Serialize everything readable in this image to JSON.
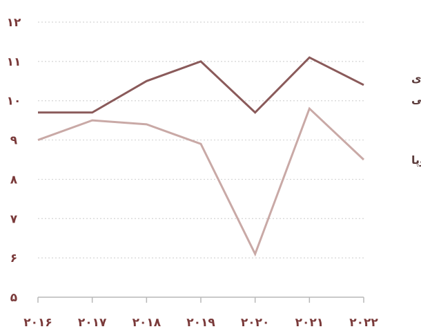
{
  "chart_data": {
    "type": "line",
    "x": [
      "۲۰۱۶",
      "۲۰۱۷",
      "۲۰۱۸",
      "۲۰۱۹",
      "۲۰۲۰",
      "۲۰۲۱",
      "۲۰۲۲"
    ],
    "y_ticks": [
      5,
      6,
      7,
      8,
      9,
      10,
      11,
      12
    ],
    "y_tick_labels": [
      "۵",
      "۶",
      "۷",
      "۸",
      "۹",
      "۱۰",
      "۱۱",
      "۱۲"
    ],
    "ylim": [
      5,
      12
    ],
    "grid": "horizontal dotted",
    "legend": "inline labels at right end of lines",
    "series": [
      {
        "name": "امریکای شمالی",
        "name_lines": [
          "امریکای",
          "شمالی"
        ],
        "values": [
          9.7,
          9.7,
          10.5,
          11.0,
          9.7,
          11.1,
          10.4
        ],
        "color": "#8a5a5a"
      },
      {
        "name": "اروپا",
        "name_lines": [
          "اروپا"
        ],
        "values": [
          9.0,
          9.5,
          9.4,
          8.9,
          6.1,
          9.8,
          8.5
        ],
        "color": "#c9a9a6"
      }
    ],
    "tick_color": "#7a3a3a"
  }
}
